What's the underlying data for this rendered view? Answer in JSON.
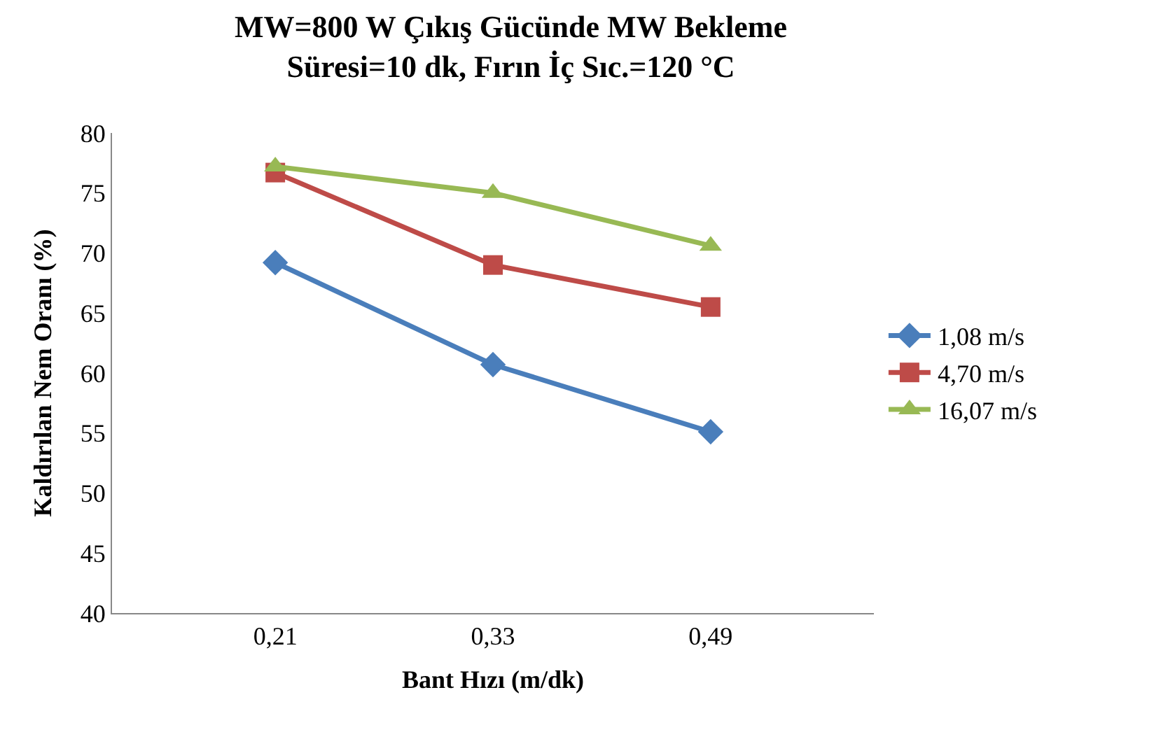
{
  "chart_data": {
    "type": "line",
    "title": "MW=800 W Çıkış Gücünde MW Bekleme Süresi=10 dk, Fırın İç Sıc.=120 °C",
    "xlabel": "Bant Hızı (m/dk)",
    "ylabel": "Kaldırılan Nem Oranı (%)",
    "categories": [
      "0,21",
      "0,33",
      "0,49"
    ],
    "series": [
      {
        "name": "1,08 m/s",
        "color": "#4a7ebb",
        "marker": "diamond",
        "values": [
          69.2,
          60.7,
          55.1
        ]
      },
      {
        "name": "4,70 m/s",
        "color": "#be4b48",
        "marker": "square",
        "values": [
          76.7,
          69.0,
          65.5
        ]
      },
      {
        "name": "16,07 m/s",
        "color": "#98b954",
        "marker": "triangle",
        "values": [
          77.2,
          75.0,
          70.6
        ]
      }
    ],
    "ylim": [
      40,
      80
    ],
    "yticks": [
      40,
      45,
      50,
      55,
      60,
      65,
      70,
      75,
      80
    ],
    "legend": "right",
    "line_style": "solid"
  }
}
